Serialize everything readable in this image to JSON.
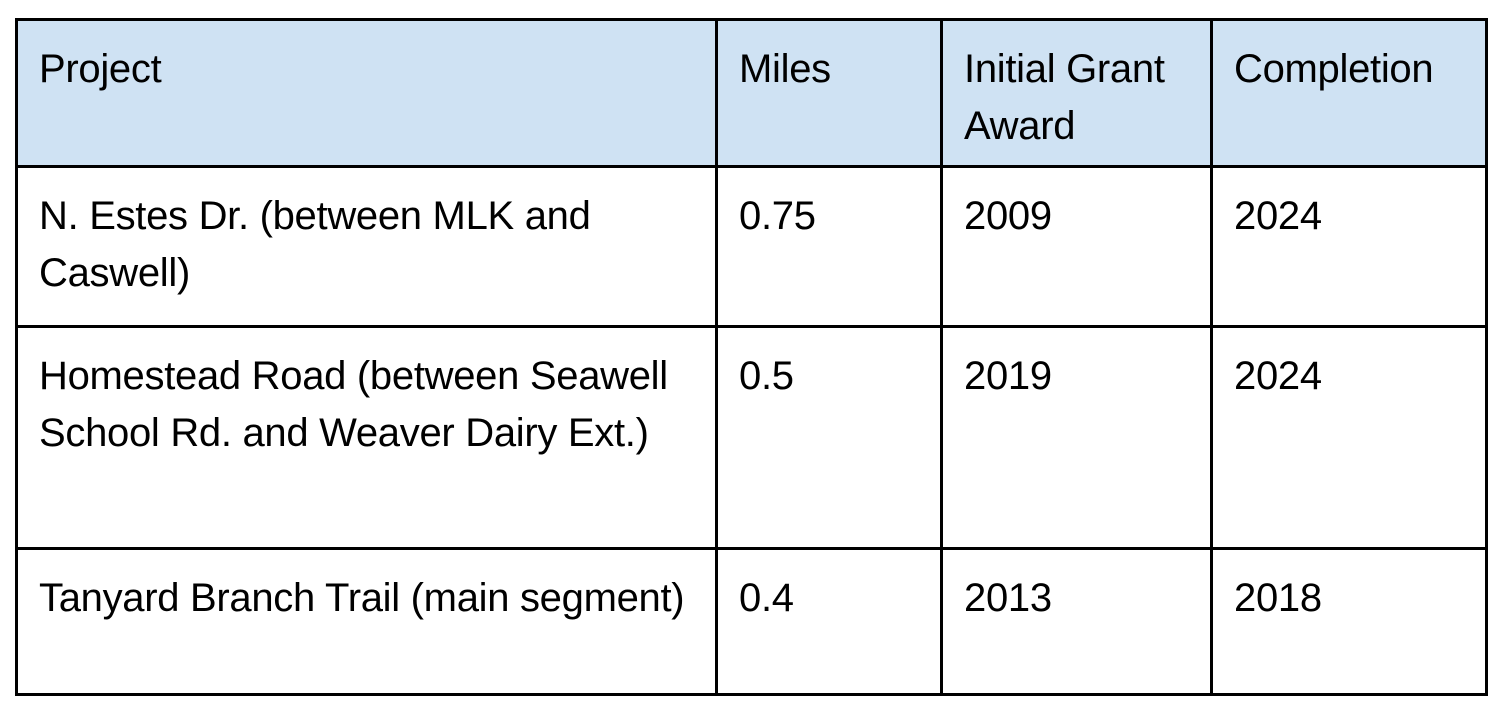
{
  "table": {
    "header_bg": "#cfe2f3",
    "border_color": "#000000",
    "columns": [
      {
        "key": "project",
        "label": "Project"
      },
      {
        "key": "miles",
        "label": "Miles"
      },
      {
        "key": "initial_grant_award",
        "label": "Initial Grant Award"
      },
      {
        "key": "completion",
        "label": "Completion"
      }
    ],
    "rows": [
      {
        "project": "N. Estes Dr. (between MLK and Caswell)",
        "miles": "0.75",
        "initial_grant_award": "2009",
        "completion": "2024"
      },
      {
        "project": "Homestead Road (between Seawell School Rd. and Weaver Dairy Ext.)",
        "miles": "0.5",
        "initial_grant_award": "2019",
        "completion": "2024"
      },
      {
        "project": "Tanyard Branch Trail (main segment)",
        "miles": "0.4",
        "initial_grant_award": "2013",
        "completion": "2018"
      }
    ]
  }
}
